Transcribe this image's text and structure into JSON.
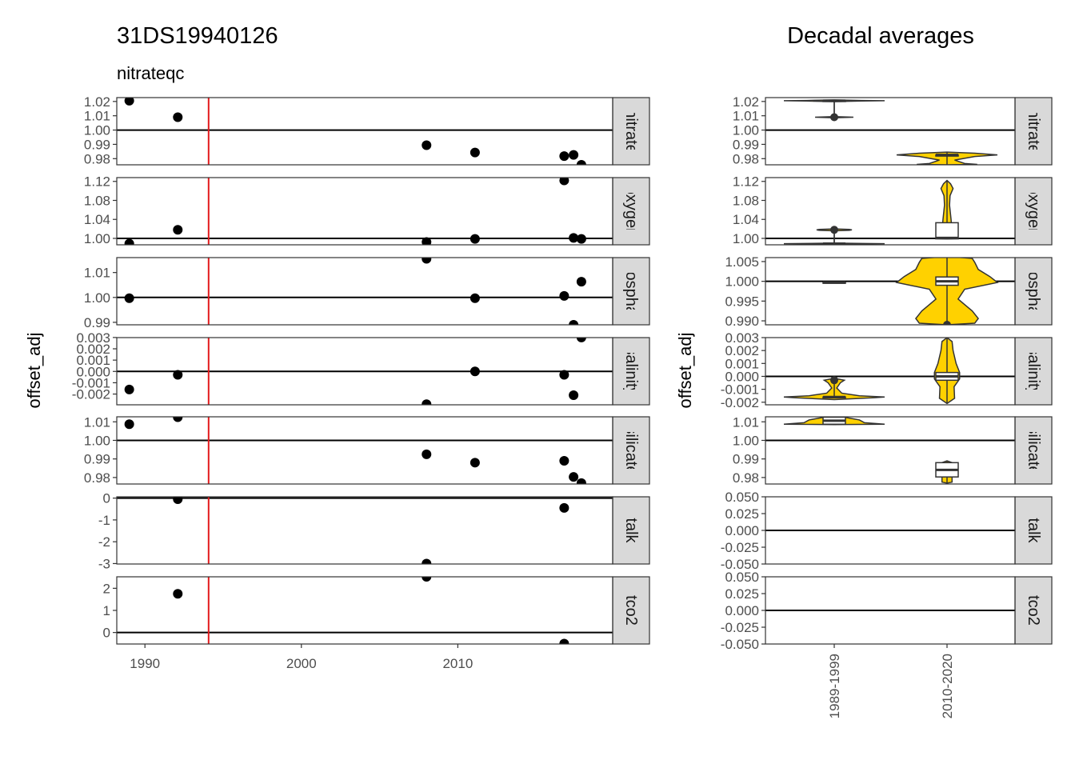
{
  "left_title": "31DS19940126",
  "left_subtitle": "nitrateqc",
  "right_title": "Decadal averages",
  "y_axis_title": "offset_adj",
  "colors": {
    "point": "#000000",
    "cruise_line": "#e31a1c",
    "violin_fill": "#ffd100",
    "panel_border": "#333333",
    "strip_fill": "#d9d9d9"
  },
  "chart_data": [
    {
      "type": "scatter",
      "title": "31DS19940126",
      "subtitle": "nitrateqc",
      "xlabel": "",
      "ylabel": "offset_adj",
      "xlim": [
        1988.2,
        2019.9
      ],
      "x_ticks": [
        1990,
        2000,
        2010
      ],
      "x_tick_labels": [
        "1990",
        "2000",
        "2010"
      ],
      "cruise_year": 1994.07,
      "facets": [
        {
          "strip": "nitrate",
          "ylim": [
            0.9757,
            1.0227
          ],
          "reference": 1.0,
          "ticks": [
            0.98,
            0.99,
            1.0,
            1.01,
            1.02
          ],
          "tick_labels": [
            "0.98",
            "0.99",
            "1.00",
            "1.01",
            "1.02"
          ],
          "points": [
            [
              1989.0,
              1.0205
            ],
            [
              1992.1,
              1.009
            ],
            [
              2008.0,
              0.9894
            ],
            [
              2011.1,
              0.9843
            ],
            [
              2016.8,
              0.9818
            ],
            [
              2017.4,
              0.9826
            ],
            [
              2017.9,
              0.9757
            ]
          ]
        },
        {
          "strip": "oxygen",
          "ylim": [
            0.9865,
            1.128
          ],
          "reference": 1.0,
          "ticks": [
            1.0,
            1.04,
            1.08,
            1.12
          ],
          "tick_labels": [
            "1.00",
            "1.04",
            "1.08",
            "1.12"
          ],
          "points": [
            [
              1989.0,
              0.989
            ],
            [
              1992.1,
              1.018
            ],
            [
              2008.0,
              0.9925
            ],
            [
              2011.1,
              0.999
            ],
            [
              2016.8,
              1.122
            ],
            [
              2017.4,
              1.001
            ],
            [
              2017.9,
              0.999
            ]
          ]
        },
        {
          "strip": "phosphate",
          "ylim": [
            0.989,
            1.016
          ],
          "reference": 1.0,
          "ticks": [
            0.99,
            1.0,
            1.01
          ],
          "tick_labels": [
            "0.99",
            "1.00",
            "1.01"
          ],
          "points": [
            [
              1989.0,
              0.9997
            ],
            [
              2008.0,
              1.0155
            ],
            [
              2011.1,
              0.9997
            ],
            [
              2016.8,
              1.0006
            ],
            [
              2017.4,
              0.989
            ],
            [
              2017.9,
              1.0063
            ]
          ]
        },
        {
          "strip": "salinity",
          "ylim": [
            -0.00295,
            0.00299
          ],
          "reference": 0.0,
          "ticks": [
            -0.002,
            -0.001,
            0.0,
            0.001,
            0.002,
            0.003
          ],
          "tick_labels": [
            "-0.002",
            "-0.001",
            "0.000",
            "0.001",
            "0.002",
            "0.003"
          ],
          "points": [
            [
              1989.0,
              -0.0016
            ],
            [
              1992.1,
              -0.0003
            ],
            [
              2008.0,
              -0.0029
            ],
            [
              2011.1,
              0.0
            ],
            [
              2016.8,
              -0.0003
            ],
            [
              2017.4,
              -0.0021
            ],
            [
              2017.9,
              0.003
            ]
          ]
        },
        {
          "strip": "silicate",
          "ylim": [
            0.9765,
            1.0127
          ],
          "reference": 1.0,
          "ticks": [
            0.98,
            0.99,
            1.0,
            1.01
          ],
          "tick_labels": [
            "0.98",
            "0.99",
            "1.00",
            "1.01"
          ],
          "points": [
            [
              1989.0,
              1.0087
            ],
            [
              1992.1,
              1.0125
            ],
            [
              2008.0,
              0.9925
            ],
            [
              2011.1,
              0.988
            ],
            [
              2016.8,
              0.989
            ],
            [
              2017.4,
              0.9803
            ],
            [
              2017.9,
              0.977
            ]
          ]
        },
        {
          "strip": "talk",
          "ylim": [
            -3.02,
            0.06
          ],
          "reference": 0.0,
          "ticks": [
            -3,
            -2,
            -1,
            0
          ],
          "tick_labels": [
            "-3",
            "-2",
            "-1",
            "0"
          ],
          "points": [
            [
              1992.1,
              -0.05
            ],
            [
              2008.0,
              -3.0
            ],
            [
              2016.8,
              -0.45
            ]
          ]
        },
        {
          "strip": "tco2",
          "ylim": [
            -0.52,
            2.52
          ],
          "reference": 0.0,
          "ticks": [
            0,
            1,
            2
          ],
          "tick_labels": [
            "0",
            "1",
            "2"
          ],
          "points": [
            [
              1992.1,
              1.75
            ],
            [
              2008.0,
              2.52
            ],
            [
              2016.8,
              -0.5
            ]
          ]
        }
      ]
    },
    {
      "type": "violin",
      "title": "Decadal averages",
      "xlabel": "",
      "ylabel": "offset_adj",
      "categories": [
        "1989-1999",
        "2010-2020"
      ],
      "facets": [
        {
          "strip": "nitrate",
          "ylim": [
            0.9757,
            1.0227
          ],
          "reference": 1.0,
          "ticks": [
            0.98,
            0.99,
            1.0,
            1.01,
            1.02
          ],
          "tick_labels": [
            "0.98",
            "0.99",
            "1.00",
            "1.01",
            "1.02"
          ],
          "groups": [
            {
              "category": "1989-1999",
              "min": 1.009,
              "q1": 1.0205,
              "median": 1.0205,
              "q3": 1.0205,
              "max": 1.0205,
              "outliers": [
                1.009
              ],
              "violin": [
                [
                  1.0086,
                  0.0
                ],
                [
                  1.009,
                  0.38
                ],
                [
                  1.0094,
                  0.0
                ],
                [
                  1.0199,
                  0.0
                ],
                [
                  1.0203,
                  0.55
                ],
                [
                  1.0205,
                  1.0
                ],
                [
                  1.0207,
                  0.55
                ],
                [
                  1.0211,
                  0.0
                ]
              ]
            },
            {
              "category": "2010-2020",
              "min": 0.9757,
              "q1": 0.9818,
              "median": 0.9826,
              "q3": 0.9826,
              "max": 0.9843,
              "outliers": [],
              "violin": [
                [
                  0.9757,
                  0.0
                ],
                [
                  0.976,
                  0.6
                ],
                [
                  0.9766,
                  0.35
                ],
                [
                  0.979,
                  0.15
                ],
                [
                  0.9815,
                  0.55
                ],
                [
                  0.9826,
                  1.0
                ],
                [
                  0.9838,
                  0.55
                ],
                [
                  0.9846,
                  0.0
                ]
              ]
            }
          ]
        },
        {
          "strip": "oxygen",
          "ylim": [
            0.9865,
            1.128
          ],
          "reference": 1.0,
          "ticks": [
            1.0,
            1.04,
            1.08,
            1.12
          ],
          "tick_labels": [
            "1.00",
            "1.04",
            "1.08",
            "1.12"
          ],
          "groups": [
            {
              "category": "1989-1999",
              "min": 0.989,
              "q1": 0.989,
              "median": 0.989,
              "q3": 0.989,
              "max": 1.018,
              "outliers": [
                1.018
              ],
              "violin": [
                [
                  0.988,
                  0.0
                ],
                [
                  0.9888,
                  1.0
                ],
                [
                  0.9892,
                  0.6
                ],
                [
                  0.99,
                  0.0
                ],
                [
                  1.016,
                  0.0
                ],
                [
                  1.017,
                  0.3
                ],
                [
                  1.018,
                  0.35
                ],
                [
                  1.019,
                  0.3
                ],
                [
                  1.02,
                  0.0
                ]
              ]
            },
            {
              "category": "2010-2020",
              "min": 0.999,
              "q1": 0.999,
              "median": 1.001,
              "q3": 1.033,
              "max": 1.122,
              "outliers": [],
              "violin": [
                [
                  0.999,
                  0.0
                ],
                [
                  0.9995,
                  0.2
                ],
                [
                  1.002,
                  0.15
                ],
                [
                  1.015,
                  0.1
                ],
                [
                  1.04,
                  0.08
                ],
                [
                  1.07,
                  0.05
                ],
                [
                  1.09,
                  0.06
                ],
                [
                  1.105,
                  0.12
                ],
                [
                  1.115,
                  0.07
                ],
                [
                  1.122,
                  0.0
                ]
              ]
            }
          ]
        },
        {
          "strip": "phosphate",
          "ylim": [
            0.989,
            1.006
          ],
          "reference": 1.0,
          "ticks": [
            0.99,
            0.995,
            1.0,
            1.005
          ],
          "tick_labels": [
            "0.990",
            "0.995",
            "1.000",
            "1.005"
          ],
          "groups": [
            {
              "category": "1989-1999",
              "min": 0.9997,
              "q1": 0.9997,
              "median": 0.9997,
              "q3": 0.9997,
              "max": 0.9997,
              "outliers": [],
              "violin": []
            },
            {
              "category": "2010-2020",
              "min": 0.989,
              "q1": 0.999,
              "median": 1.0,
              "q3": 1.0011,
              "max": 1.0063,
              "outliers": [
                0.989
              ],
              "violin": [
                [
                  0.989,
                  0.0
                ],
                [
                  0.9894,
                  0.55
                ],
                [
                  0.9906,
                  0.62
                ],
                [
                  0.9925,
                  0.5
                ],
                [
                  0.9955,
                  0.22
                ],
                [
                  0.998,
                  0.35
                ],
                [
                  0.9997,
                  1.0
                ],
                [
                  1.0012,
                  0.85
                ],
                [
                  1.003,
                  0.62
                ],
                [
                  1.0048,
                  0.55
                ],
                [
                  1.0058,
                  0.5
                ],
                [
                  1.0063,
                  0.0
                ]
              ]
            }
          ]
        },
        {
          "strip": "salinity",
          "ylim": [
            -0.0022,
            0.003
          ],
          "reference": 0.0,
          "ticks": [
            -0.002,
            -0.001,
            0.0,
            0.001,
            0.002,
            0.003
          ],
          "tick_labels": [
            "-0.002",
            "-0.001",
            "0.000",
            "0.001",
            "0.002",
            "0.003"
          ],
          "groups": [
            {
              "category": "1989-1999",
              "min": -0.0016,
              "q1": -0.0016,
              "median": -0.0016,
              "q3": -0.0016,
              "max": -0.0003,
              "outliers": [
                -0.0003
              ],
              "violin": [
                [
                  -0.0018,
                  0.0
                ],
                [
                  -0.00165,
                  0.8
                ],
                [
                  -0.0016,
                  1.0
                ],
                [
                  -0.0015,
                  0.5
                ],
                [
                  -0.0013,
                  0.15
                ],
                [
                  -0.0009,
                  0.05
                ],
                [
                  -0.0005,
                  0.12
                ],
                [
                  -0.0003,
                  0.2
                ],
                [
                  -0.00015,
                  0.0
                ]
              ]
            },
            {
              "category": "2010-2020",
              "min": -0.0021,
              "q1": -0.0003,
              "median": 0.0,
              "q3": 0.0003,
              "max": 0.003,
              "outliers": [],
              "violin": [
                [
                  -0.0021,
                  0.0
                ],
                [
                  -0.0017,
                  0.15
                ],
                [
                  -0.0008,
                  0.14
                ],
                [
                  -0.0002,
                  0.25
                ],
                [
                  0.0003,
                  0.25
                ],
                [
                  0.001,
                  0.18
                ],
                [
                  0.002,
                  0.12
                ],
                [
                  0.0027,
                  0.1
                ],
                [
                  0.003,
                  0.0
                ]
              ]
            }
          ]
        },
        {
          "strip": "silicate",
          "ylim": [
            0.9765,
            1.0127
          ],
          "reference": 1.0,
          "ticks": [
            0.98,
            0.99,
            1.0,
            1.01
          ],
          "tick_labels": [
            "0.98",
            "0.99",
            "1.00",
            "1.01"
          ],
          "groups": [
            {
              "category": "1989-1999",
              "min": 1.0087,
              "q1": 1.0087,
              "median": 1.0106,
              "q3": 1.0125,
              "max": 1.0125,
              "outliers": [],
              "violin": [
                [
                  1.0085,
                  0.0
                ],
                [
                  1.0087,
                  1.0
                ],
                [
                  1.0095,
                  0.6
                ],
                [
                  1.011,
                  0.5
                ],
                [
                  1.0125,
                  0.2
                ],
                [
                  1.0127,
                  0.0
                ]
              ]
            },
            {
              "category": "2010-2020",
              "min": 0.977,
              "q1": 0.9803,
              "median": 0.9841,
              "q3": 0.988,
              "max": 0.989,
              "outliers": [],
              "violin": [
                [
                  0.977,
                  0.0
                ],
                [
                  0.9775,
                  0.1
                ],
                [
                  0.98,
                  0.1
                ],
                [
                  0.984,
                  0.1
                ],
                [
                  0.988,
                  0.1
                ],
                [
                  0.989,
                  0.0
                ]
              ]
            }
          ]
        },
        {
          "strip": "talk",
          "ylim": [
            -0.05,
            0.05
          ],
          "reference": 0.0,
          "ticks": [
            -0.05,
            -0.025,
            0.0,
            0.025,
            0.05
          ],
          "tick_labels": [
            "-0.050",
            "-0.025",
            "0.000",
            "0.025",
            "0.050"
          ],
          "groups": []
        },
        {
          "strip": "tco2",
          "ylim": [
            -0.05,
            0.05
          ],
          "reference": 0.0,
          "ticks": [
            -0.05,
            -0.025,
            0.0,
            0.025,
            0.05
          ],
          "tick_labels": [
            "-0.050",
            "-0.025",
            "0.000",
            "0.025",
            "0.050"
          ],
          "groups": []
        }
      ]
    }
  ]
}
